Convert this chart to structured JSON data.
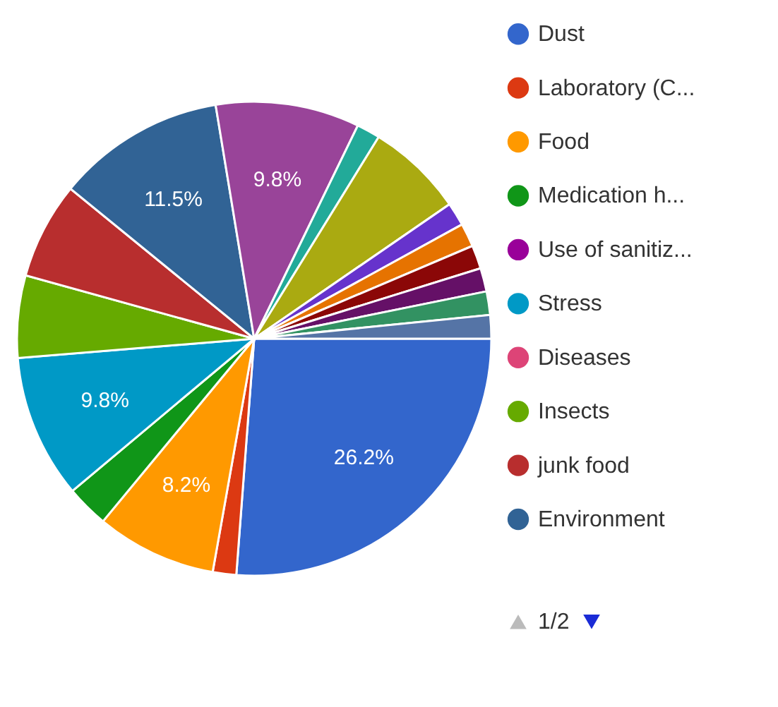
{
  "chart_data": {
    "type": "pie",
    "categories": [
      "Dust",
      "Laboratory (C...",
      "Food",
      "Medication h...",
      "Use of sanitiz...",
      "Stress",
      "Diseases",
      "Insects",
      "junk food",
      "Environment",
      null,
      null,
      null,
      null,
      null,
      null,
      null,
      null,
      null
    ],
    "values": [
      26.2,
      1.6,
      8.2,
      2.9,
      0,
      9.8,
      0,
      5.6,
      6.6,
      11.5,
      9.8,
      1.6,
      6.6,
      1.6,
      1.6,
      1.6,
      1.6,
      1.6,
      1.6
    ],
    "colors": [
      "#3366cc",
      "#dc3912",
      "#ff9900",
      "#109618",
      "#990099",
      "#0099c6",
      "#dd4477",
      "#66aa00",
      "#b82e2e",
      "#316395",
      "#994499",
      "#22aa99",
      "#aaaa11",
      "#6633cc",
      "#e67300",
      "#8b0707",
      "#651067",
      "#329262",
      "#5574a6"
    ],
    "value_labels": [
      "26.2%",
      null,
      "8.2%",
      null,
      null,
      "9.8%",
      null,
      null,
      null,
      "11.5%",
      "9.8%",
      null,
      null,
      null,
      null,
      null,
      null,
      null,
      null
    ],
    "legend": "right",
    "annotations": [
      "1/2"
    ]
  }
}
